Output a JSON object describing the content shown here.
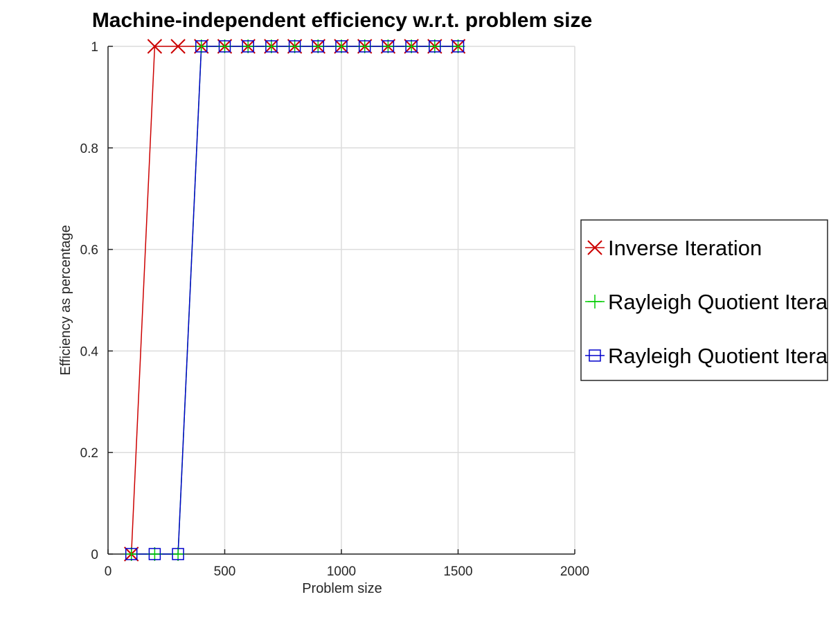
{
  "chart_data": {
    "type": "line",
    "title": "Machine-independent efficiency w.r.t. problem size",
    "xlabel": "Problem size",
    "ylabel": "Efficiency as percentage",
    "xlim": [
      0,
      2000
    ],
    "ylim": [
      0,
      1
    ],
    "xticks": [
      0,
      500,
      1000,
      1500,
      2000
    ],
    "yticks": [
      0,
      0.2,
      0.4,
      0.6,
      0.8,
      1
    ],
    "xtick_labels": [
      "0",
      "500",
      "1000",
      "1500",
      "2000"
    ],
    "ytick_labels": [
      "0",
      "0.2",
      "0.4",
      "0.6",
      "0.8",
      "1"
    ],
    "grid": true,
    "legend_position": "outside-right",
    "series": [
      {
        "name": "Inverse Iteration",
        "color": "#cc0000",
        "marker": "x",
        "x": [
          100,
          200,
          300,
          400,
          500,
          600,
          700,
          800,
          900,
          1000,
          1100,
          1200,
          1300,
          1400,
          1500
        ],
        "y": [
          0,
          1,
          1,
          1,
          1,
          1,
          1,
          1,
          1,
          1,
          1,
          1,
          1,
          1,
          1
        ]
      },
      {
        "name": "Rayleigh Quotient Itera",
        "color": "#00cc00",
        "marker": "+",
        "x": [
          100,
          200,
          300,
          400,
          500,
          600,
          700,
          800,
          900,
          1000,
          1100,
          1200,
          1300,
          1400,
          1500
        ],
        "y": [
          0,
          0,
          0,
          1,
          1,
          1,
          1,
          1,
          1,
          1,
          1,
          1,
          1,
          1,
          1
        ]
      },
      {
        "name": "Rayleigh Quotient Itera",
        "color": "#0000cc",
        "marker": "square",
        "x": [
          100,
          200,
          300,
          400,
          500,
          600,
          700,
          800,
          900,
          1000,
          1100,
          1200,
          1300,
          1400,
          1500
        ],
        "y": [
          0,
          0,
          0,
          1,
          1,
          1,
          1,
          1,
          1,
          1,
          1,
          1,
          1,
          1,
          1
        ]
      }
    ]
  }
}
